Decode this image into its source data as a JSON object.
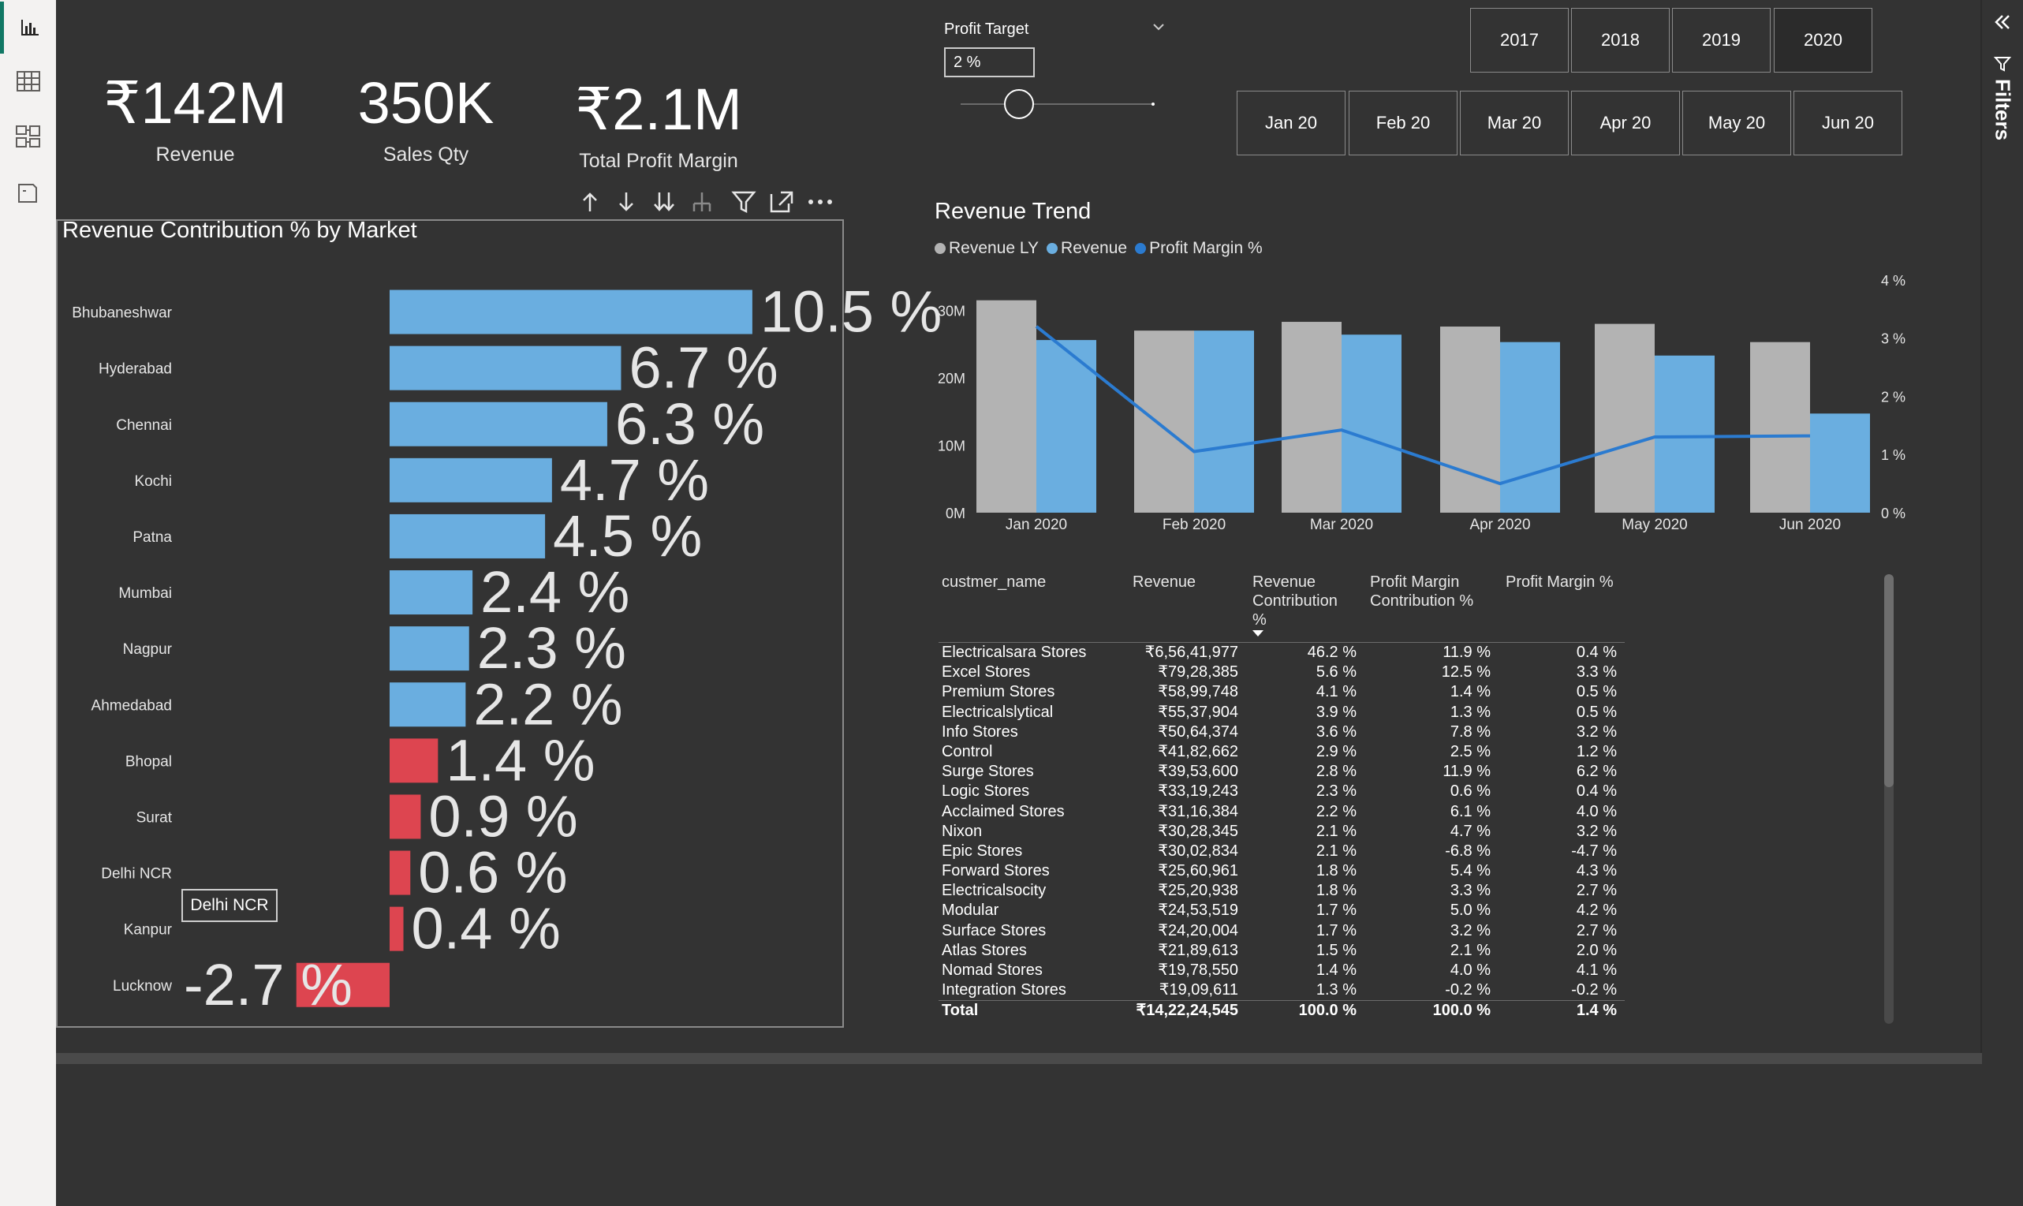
{
  "nav": {
    "items": [
      {
        "name": "report-view",
        "icon": "bar-chart-icon",
        "active": true
      },
      {
        "name": "table-view",
        "icon": "table-icon",
        "active": false
      },
      {
        "name": "model-view",
        "icon": "model-icon",
        "active": false
      },
      {
        "name": "dax-view",
        "icon": "dax-icon",
        "active": false
      }
    ]
  },
  "filters_pane": {
    "label": "Filters",
    "collapse_icon": "double-chevron-left-icon",
    "filter_icon": "funnel-icon"
  },
  "kpis": {
    "revenue": {
      "value": "₹142M",
      "label": "Revenue"
    },
    "sales_qty": {
      "value": "350K",
      "label": "Sales Qty"
    },
    "profit_margin": {
      "value": "₹2.1M",
      "label": "Total Profit Margin"
    }
  },
  "profit_target": {
    "title": "Profit Target",
    "value": "2 %",
    "slider_fraction": 0.3
  },
  "years": [
    "2017",
    "2018",
    "2019",
    "2020"
  ],
  "selected_year": "2020",
  "months": [
    "Jan 20",
    "Feb 20",
    "Mar 20",
    "Apr 20",
    "May 20",
    "Jun 20"
  ],
  "bar_visual": {
    "title": "Revenue Contribution % by Market",
    "tooltip": "Delhi NCR",
    "header_icons": [
      "arrow-up-icon",
      "arrow-down-icon",
      "double-arrow-down-icon",
      "expand-hierarchy-icon",
      "filter-icon",
      "focus-mode-icon",
      "more-options-icon"
    ]
  },
  "chart_data": [
    {
      "type": "bar",
      "orientation": "horizontal",
      "title": "Revenue Contribution % by Market",
      "categories": [
        "Bhubaneshwar",
        "Hyderabad",
        "Chennai",
        "Kochi",
        "Patna",
        "Mumbai",
        "Nagpur",
        "Ahmedabad",
        "Bhopal",
        "Surat",
        "Delhi NCR",
        "Kanpur",
        "Lucknow"
      ],
      "values": [
        10.5,
        6.7,
        6.3,
        4.7,
        4.5,
        2.4,
        2.3,
        2.2,
        1.4,
        0.9,
        0.6,
        0.4,
        -2.7
      ],
      "labels": [
        "10.5 %",
        "6.7 %",
        "6.3 %",
        "4.7 %",
        "4.5 %",
        "2.4 %",
        "2.3 %",
        "2.2 %",
        "1.4 %",
        "0.9 %",
        "0.6 %",
        "0.4 %",
        "-2.7 %"
      ],
      "colors": {
        "positive": "#6aaee0",
        "below_target": "#dd4550"
      },
      "target": 2
    },
    {
      "type": "bar",
      "title": "Revenue Trend",
      "categories": [
        "Jan 2020",
        "Feb 2020",
        "Mar 2020",
        "Apr 2020",
        "May 2020",
        "Jun 2020"
      ],
      "series": [
        {
          "name": "Revenue LY",
          "type": "bar",
          "color": "#b3b3b3",
          "values": [
            31.5,
            27,
            28.3,
            27.6,
            28,
            25.3
          ]
        },
        {
          "name": "Revenue",
          "type": "bar",
          "color": "#6aaee0",
          "values": [
            25.6,
            27,
            26.4,
            25.3,
            23.3,
            14.7
          ]
        },
        {
          "name": "Profit Margin %",
          "type": "line",
          "axis": "right",
          "color": "#2b7bd0",
          "values": [
            3.2,
            1.05,
            1.42,
            0.5,
            1.3,
            1.32
          ]
        }
      ],
      "y_ticks": [
        "0M",
        "10M",
        "20M",
        "30M"
      ],
      "ylim": [
        0,
        35
      ],
      "y2_ticks": [
        "0 %",
        "1 %",
        "2 %",
        "3 %",
        "4 %"
      ],
      "y2lim": [
        0,
        4
      ],
      "legend": "top-left"
    }
  ],
  "table": {
    "headers": [
      "custmer_name",
      "Revenue",
      "Revenue Contribution %",
      "Profit Margin Contribution %",
      "Profit Margin %"
    ],
    "rows": [
      [
        "Electricalsara Stores",
        "₹6,56,41,977",
        "46.2 %",
        "11.9 %",
        "0.4 %"
      ],
      [
        "Excel Stores",
        "₹79,28,385",
        "5.6 %",
        "12.5 %",
        "3.3 %"
      ],
      [
        "Premium Stores",
        "₹58,99,748",
        "4.1 %",
        "1.4 %",
        "0.5 %"
      ],
      [
        "Electricalslytical",
        "₹55,37,904",
        "3.9 %",
        "1.3 %",
        "0.5 %"
      ],
      [
        "Info Stores",
        "₹50,64,374",
        "3.6 %",
        "7.8 %",
        "3.2 %"
      ],
      [
        "Control",
        "₹41,82,662",
        "2.9 %",
        "2.5 %",
        "1.2 %"
      ],
      [
        "Surge Stores",
        "₹39,53,600",
        "2.8 %",
        "11.9 %",
        "6.2 %"
      ],
      [
        "Logic Stores",
        "₹33,19,243",
        "2.3 %",
        "0.6 %",
        "0.4 %"
      ],
      [
        "Acclaimed Stores",
        "₹31,16,384",
        "2.2 %",
        "6.1 %",
        "4.0 %"
      ],
      [
        "Nixon",
        "₹30,28,345",
        "2.1 %",
        "4.7 %",
        "3.2 %"
      ],
      [
        "Epic Stores",
        "₹30,02,834",
        "2.1 %",
        "-6.8 %",
        "-4.7 %"
      ],
      [
        "Forward Stores",
        "₹25,60,961",
        "1.8 %",
        "5.4 %",
        "4.3 %"
      ],
      [
        "Electricalsocity",
        "₹25,20,938",
        "1.8 %",
        "3.3 %",
        "2.7 %"
      ],
      [
        "Modular",
        "₹24,53,519",
        "1.7 %",
        "5.0 %",
        "4.2 %"
      ],
      [
        "Surface Stores",
        "₹24,20,004",
        "1.7 %",
        "3.2 %",
        "2.7 %"
      ],
      [
        "Atlas Stores",
        "₹21,89,613",
        "1.5 %",
        "2.1 %",
        "2.0 %"
      ],
      [
        "Nomad Stores",
        "₹19,78,550",
        "1.4 %",
        "4.0 %",
        "4.1 %"
      ],
      [
        "Integration Stores",
        "₹19,09,611",
        "1.3 %",
        "-0.2 %",
        "-0.2 %"
      ]
    ],
    "total": [
      "Total",
      "₹14,22,24,545",
      "100.0 %",
      "100.0 %",
      "1.4 %"
    ],
    "scroll_fraction": 0
  }
}
